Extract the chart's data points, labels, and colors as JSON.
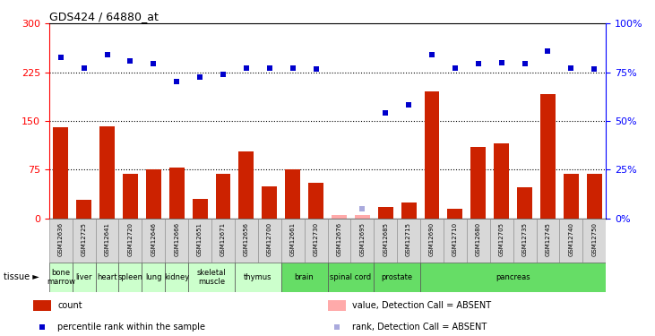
{
  "title": "GDS424 / 64880_at",
  "samples": [
    "GSM12636",
    "GSM12725",
    "GSM12641",
    "GSM12720",
    "GSM12646",
    "GSM12666",
    "GSM12651",
    "GSM12671",
    "GSM12656",
    "GSM12700",
    "GSM12661",
    "GSM12730",
    "GSM12676",
    "GSM12695",
    "GSM12685",
    "GSM12715",
    "GSM12690",
    "GSM12710",
    "GSM12680",
    "GSM12705",
    "GSM12735",
    "GSM12745",
    "GSM12740",
    "GSM12750"
  ],
  "bar_values": [
    140,
    28,
    142,
    68,
    76,
    78,
    30,
    68,
    103,
    50,
    76,
    55,
    5,
    5,
    18,
    25,
    195,
    15,
    110,
    115,
    48,
    192,
    68,
    68
  ],
  "absent_bar": [
    false,
    false,
    false,
    false,
    false,
    false,
    false,
    false,
    false,
    false,
    false,
    false,
    true,
    true,
    false,
    false,
    false,
    false,
    false,
    false,
    false,
    false,
    false,
    false
  ],
  "blue_dots_left_scale": [
    248,
    232,
    252,
    242,
    238,
    210,
    218,
    222,
    232,
    232,
    232,
    230,
    null,
    15,
    162,
    175,
    252,
    232,
    238,
    240,
    238,
    258,
    232,
    230
  ],
  "absent_rank": [
    false,
    false,
    false,
    false,
    false,
    false,
    false,
    false,
    false,
    false,
    false,
    false,
    null,
    true,
    false,
    false,
    false,
    false,
    false,
    false,
    false,
    false,
    false,
    false
  ],
  "tissue_data": [
    {
      "name": "bone\nmarrow",
      "indices": [
        0
      ],
      "color": "#ccffcc"
    },
    {
      "name": "liver",
      "indices": [
        1
      ],
      "color": "#ccffcc"
    },
    {
      "name": "heart",
      "indices": [
        2
      ],
      "color": "#ccffcc"
    },
    {
      "name": "spleen",
      "indices": [
        3
      ],
      "color": "#ccffcc"
    },
    {
      "name": "lung",
      "indices": [
        4
      ],
      "color": "#ccffcc"
    },
    {
      "name": "kidney",
      "indices": [
        5
      ],
      "color": "#ccffcc"
    },
    {
      "name": "skeletal\nmuscle",
      "indices": [
        6,
        7
      ],
      "color": "#ccffcc"
    },
    {
      "name": "thymus",
      "indices": [
        8,
        9
      ],
      "color": "#ccffcc"
    },
    {
      "name": "brain",
      "indices": [
        10,
        11
      ],
      "color": "#66dd66"
    },
    {
      "name": "spinal cord",
      "indices": [
        12,
        13
      ],
      "color": "#66dd66"
    },
    {
      "name": "prostate",
      "indices": [
        14,
        15
      ],
      "color": "#66dd66"
    },
    {
      "name": "pancreas",
      "indices": [
        16,
        17,
        18,
        19,
        20,
        21,
        22,
        23
      ],
      "color": "#66dd66"
    }
  ],
  "ylim_left": [
    0,
    300
  ],
  "ylim_right": [
    0,
    100
  ],
  "yticks_left": [
    0,
    75,
    150,
    225,
    300
  ],
  "yticks_right": [
    0,
    25,
    50,
    75,
    100
  ],
  "hlines": [
    75,
    150,
    225
  ],
  "bar_color": "#cc2200",
  "absent_bar_color": "#ffaaaa",
  "dot_color": "#0000cc",
  "absent_dot_color": "#aaaadd",
  "bg_color": "#d8d8d8",
  "legend": [
    {
      "type": "rect",
      "color": "#cc2200",
      "label": "count"
    },
    {
      "type": "square",
      "color": "#0000cc",
      "label": "percentile rank within the sample"
    },
    {
      "type": "rect",
      "color": "#ffaaaa",
      "label": "value, Detection Call = ABSENT"
    },
    {
      "type": "square",
      "color": "#aaaadd",
      "label": "rank, Detection Call = ABSENT"
    }
  ]
}
